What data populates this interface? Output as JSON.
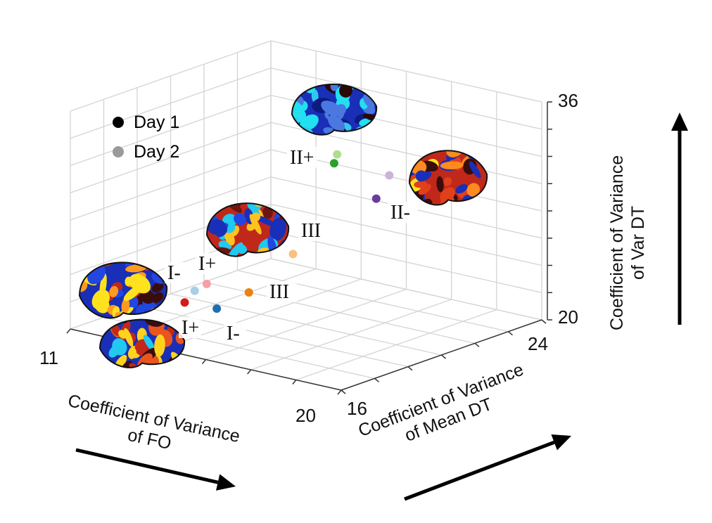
{
  "chart_data": {
    "type": "scatter",
    "projection": "3d",
    "grid": true,
    "xlabel": "Coefficient of Variance of FO",
    "ylabel": "Coefficient of Variance of Mean DT",
    "zlabel": "Coefficient of Variance of Var DT",
    "xlabel_lines": [
      "Coefficient of Variance",
      "of FO"
    ],
    "ylabel_lines": [
      "Coefficient of Variance",
      "of Mean DT"
    ],
    "zlabel_lines": [
      "Coefficient of Variance",
      "of Var DT"
    ],
    "xlim": [
      11,
      20
    ],
    "ylim": [
      16,
      24
    ],
    "zlim": [
      20,
      36
    ],
    "xticks": [
      "11",
      "20"
    ],
    "yticks": [
      "16",
      "24"
    ],
    "zticks": [
      "20",
      "36"
    ],
    "legend": {
      "placement": "top-left",
      "entries": [
        {
          "label": "Day 1",
          "color": "#000000"
        },
        {
          "label": "Day 2",
          "color": "#9a9a9a"
        }
      ]
    },
    "series": [
      {
        "cluster": "I+",
        "points": [
          {
            "day": 1,
            "x": 12.8,
            "y": 18.4,
            "z": 21.3,
            "color": "#d7191c"
          },
          {
            "day": 2,
            "x": 13.2,
            "y": 18.8,
            "z": 22.6,
            "color": "#f4a0a6"
          }
        ]
      },
      {
        "cluster": "I-",
        "points": [
          {
            "day": 1,
            "x": 14.2,
            "y": 18.0,
            "z": 21.8,
            "color": "#1f6fb0"
          },
          {
            "day": 2,
            "x": 12.8,
            "y": 18.8,
            "z": 21.9,
            "color": "#a8cfe6"
          }
        ]
      },
      {
        "cluster": "III",
        "points": [
          {
            "day": 1,
            "x": 13.6,
            "y": 20.0,
            "z": 21.4,
            "color": "#f07f0c"
          },
          {
            "day": 2,
            "x": 14.4,
            "y": 20.8,
            "z": 24.1,
            "color": "#f9c081"
          }
        ]
      },
      {
        "cluster": "II+",
        "points": [
          {
            "day": 1,
            "x": 15.1,
            "y": 21.6,
            "z": 30.6,
            "color": "#2ca02c"
          },
          {
            "day": 2,
            "x": 15.2,
            "y": 21.6,
            "z": 31.3,
            "color": "#addf8f"
          }
        ]
      },
      {
        "cluster": "II-",
        "points": [
          {
            "day": 1,
            "x": 16.5,
            "y": 21.6,
            "z": 28.7,
            "color": "#6a3d9a"
          },
          {
            "day": 2,
            "x": 16.6,
            "y": 22.0,
            "z": 30.2,
            "color": "#cbb4d8"
          }
        ]
      }
    ],
    "annotations": [
      "I+",
      "I-",
      "III",
      "I-",
      "I+",
      "III",
      "II+",
      "II-"
    ]
  }
}
